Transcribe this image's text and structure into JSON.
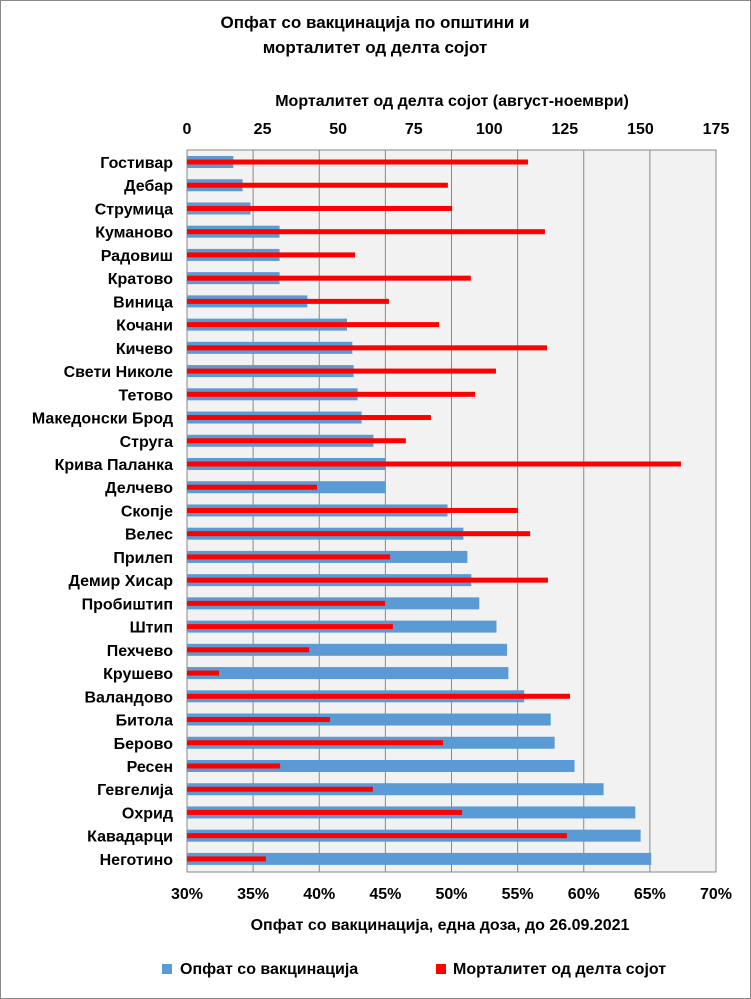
{
  "chart_data": {
    "type": "bar",
    "orientation": "horizontal",
    "title": [
      "Опфат со вакцинација по општини и",
      "морталитет од делта сојот"
    ],
    "x_bottom_label": "Опфат со вакцинација, една доза, до 26.09.2021",
    "x_top_label": "Морталитет од делта сојот (август-ноември)",
    "x_bottom_range": [
      30,
      70
    ],
    "x_bottom_ticks": [
      "30%",
      "35%",
      "40%",
      "45%",
      "50%",
      "55%",
      "60%",
      "65%",
      "70%"
    ],
    "x_top_range": [
      0,
      175
    ],
    "x_top_ticks": [
      "0",
      "25",
      "50",
      "75",
      "100",
      "125",
      "150",
      "175"
    ],
    "grid": true,
    "legend_position": "bottom",
    "categories": [
      "Гостивар",
      "Дебар",
      "Струмица",
      "Куманово",
      "Радовиш",
      "Кратово",
      "Виница",
      "Кочани",
      "Кичево",
      "Свети Николе",
      "Тетово",
      "Македонски Брод",
      "Струга",
      "Крива Паланка",
      "Делчево",
      "Скопје",
      "Велес",
      "Прилеп",
      "Демир Хисар",
      "Пробиштип",
      "Штип",
      "Пехчево",
      "Крушево",
      "Валандово",
      "Битола",
      "Берово",
      "Ресен",
      "Гевгелија",
      "Охрид",
      "Кавадарци",
      "Неготино"
    ],
    "series": [
      {
        "name": "Опфат со вакцинација",
        "axis": "bottom",
        "color": "#5b9bd5",
        "values": [
          33.5,
          34.2,
          34.8,
          37.0,
          37.0,
          37.0,
          39.1,
          42.1,
          42.5,
          42.6,
          42.9,
          43.2,
          44.1,
          45.0,
          45.0,
          49.7,
          50.9,
          51.2,
          51.5,
          52.1,
          53.4,
          54.2,
          54.3,
          55.5,
          57.5,
          57.8,
          59.3,
          61.5,
          63.9,
          64.3,
          65.1
        ]
      },
      {
        "name": "Морталитет од делта сојот",
        "axis": "top",
        "color": "#ff0000",
        "values": [
          112.8,
          86.3,
          87.7,
          118.4,
          55.6,
          93.9,
          66.8,
          83.4,
          119.1,
          102.2,
          95.3,
          80.7,
          72.4,
          163.4,
          43.0,
          109.5,
          113.5,
          67.2,
          119.4,
          65.5,
          68.1,
          40.4,
          10.6,
          126.7,
          47.3,
          84.7,
          30.8,
          61.5,
          91.0,
          125.7,
          26.1
        ]
      }
    ]
  }
}
